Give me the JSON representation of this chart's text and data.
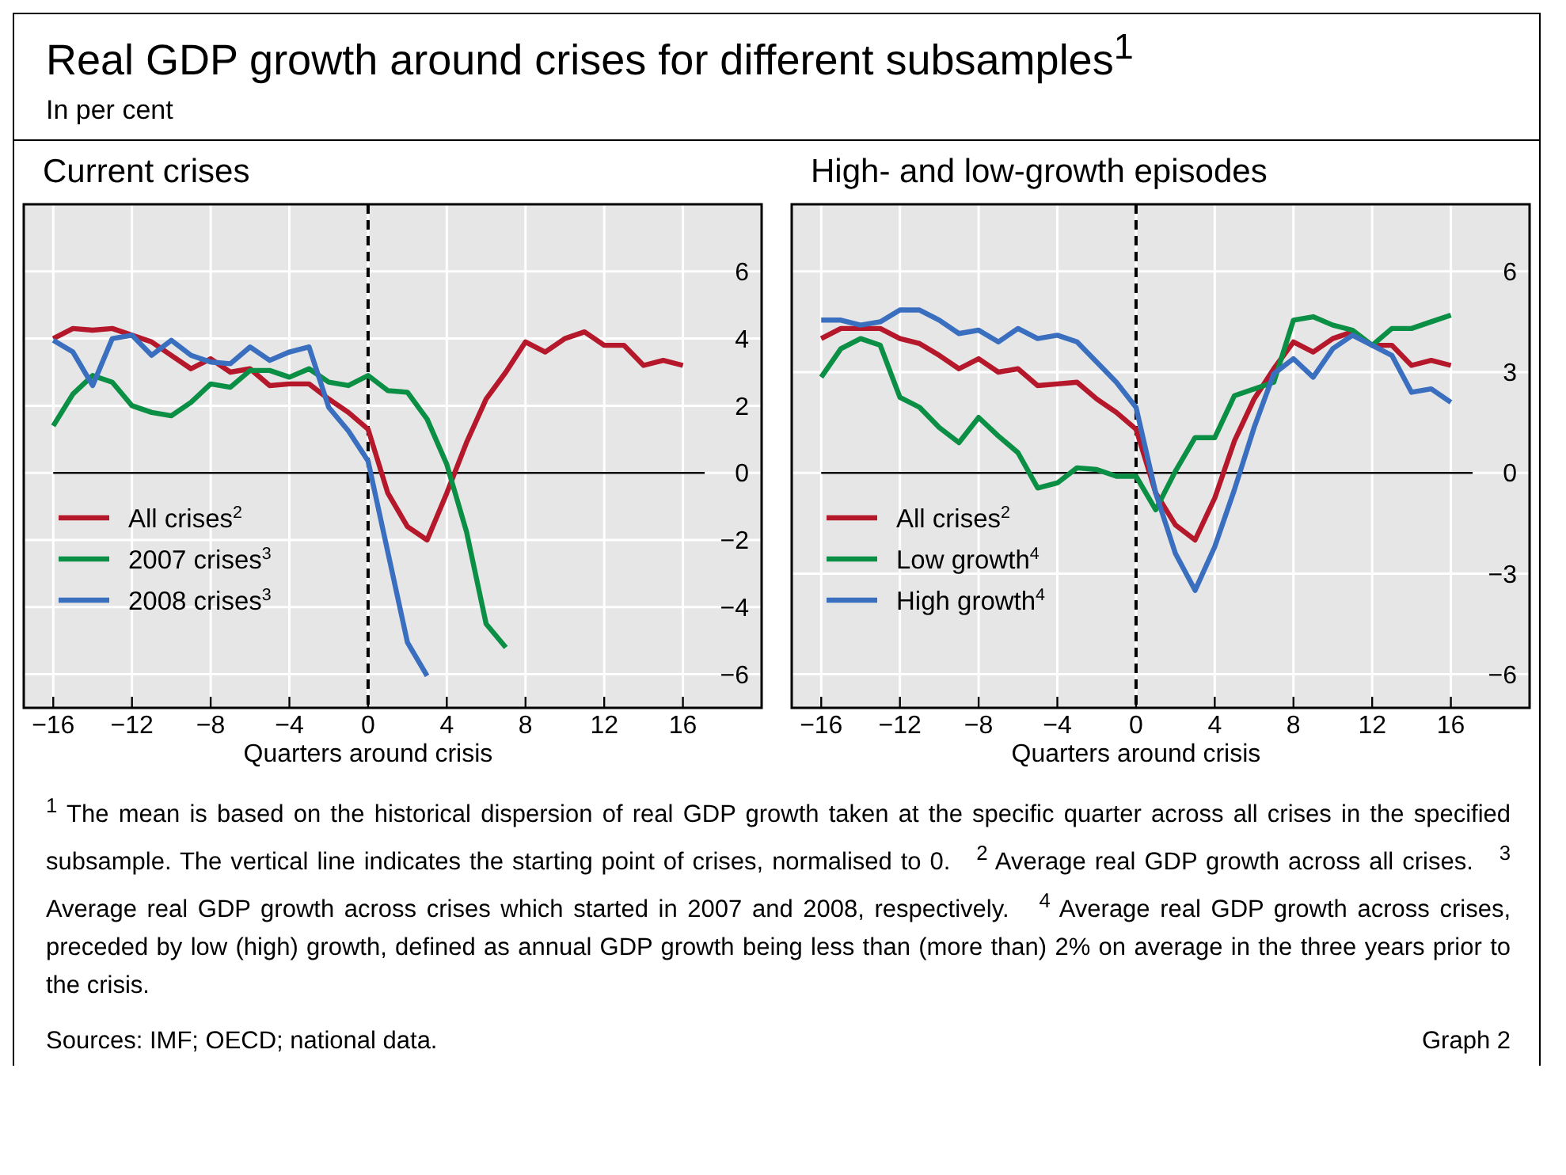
{
  "chart_data": [
    {
      "type": "line",
      "title": "Current crises",
      "xlabel": "Quarters around crisis",
      "annotations": [
        "Real GDP growth around crises for different subsamples$^{1}$",
        "In per cent",
        "$^{1}$ The mean is based on the historical dispersion of real GDP growth taken at the specific quarter across all crises in the specified subsample. The vertical line indicates the starting point of crises, normalised to 0.",
        "$^{2}$ Average real GDP growth across all crises.",
        "$^{3}$ Average real GDP growth across crises which started in 2007 and 2008, respectively.",
        "$^{4}$ Average real GDP growth across crises, preceded by low (high) growth, defined as annual GDP growth being less than (more than) 2% on average in the three years prior to the crisis.",
        "Sources: IMF; OECD; national data.",
        "Graph 2"
      ],
      "xlim": [
        -17.5,
        20
      ],
      "ylim": [
        -7,
        8
      ],
      "xticks": [
        {
          "value": -16,
          "label": "−16"
        },
        {
          "value": -12,
          "label": "−12"
        },
        {
          "value": -8,
          "label": "−8"
        },
        {
          "value": -4,
          "label": "−4"
        },
        0,
        4,
        8,
        12,
        16
      ],
      "yticks": [
        {
          "value": -6,
          "label": "−6"
        },
        {
          "value": -4,
          "label": "−4"
        },
        {
          "value": -2,
          "label": "−2"
        },
        0,
        2,
        4,
        6
      ],
      "grid": true,
      "legend": "bottom left",
      "line_style": "solid",
      "marker": "none",
      "ref_lines": [
        {
          "axis": "x",
          "value": 0,
          "label": null,
          "color": "#000000",
          "line_style": "dashed"
        },
        {
          "axis": "y",
          "value": 0,
          "label": null,
          "color": "#000000",
          "line_style": "solid"
        }
      ],
      "series": [
        {
          "name": "All crises$^{2}$",
          "color": "#b5182b",
          "x": [
            -16,
            -15,
            -14,
            -13,
            -12,
            -11,
            -10,
            -9,
            -8,
            -7,
            -6,
            -5,
            -4,
            -3,
            -2,
            -1,
            0,
            1,
            2,
            3,
            4,
            5,
            6,
            7,
            8,
            9,
            10,
            11,
            12,
            13,
            14,
            15,
            16
          ],
          "values": [
            4.0,
            4.3,
            4.25,
            4.3,
            4.1,
            3.9,
            3.5,
            3.1,
            3.4,
            3.0,
            3.1,
            2.6,
            2.65,
            2.65,
            2.2,
            1.8,
            1.3,
            -0.6,
            -1.6,
            -2.0,
            -0.6,
            0.9,
            2.2,
            3.0,
            3.9,
            3.6,
            4.0,
            4.2,
            3.8,
            3.8,
            3.2,
            3.35,
            3.2
          ]
        },
        {
          "name": "2007 crises$^{3}$",
          "color": "#0a8f45",
          "x": [
            -16,
            -15,
            -14,
            -13,
            -12,
            -11,
            -10,
            -9,
            -8,
            -7,
            -6,
            -5,
            -4,
            -3,
            -2,
            -1,
            0,
            1,
            2,
            3,
            4,
            5,
            6,
            7
          ],
          "values": [
            1.4,
            2.35,
            2.9,
            2.7,
            2.0,
            1.8,
            1.7,
            2.1,
            2.65,
            2.55,
            3.05,
            3.05,
            2.85,
            3.1,
            2.7,
            2.6,
            2.9,
            2.45,
            2.4,
            1.6,
            0.25,
            -1.75,
            -4.5,
            -5.2
          ]
        },
        {
          "name": "2008 crises$^{3}$",
          "color": "#3a6fbf",
          "x": [
            -16,
            -15,
            -14,
            -13,
            -12,
            -11,
            -10,
            -9,
            -8,
            -7,
            -6,
            -5,
            -4,
            -3,
            -2,
            -1,
            0,
            1,
            2,
            3
          ],
          "values": [
            3.95,
            3.6,
            2.6,
            4.0,
            4.1,
            3.5,
            3.95,
            3.5,
            3.3,
            3.25,
            3.75,
            3.35,
            3.6,
            3.75,
            1.95,
            1.25,
            0.35,
            -2.35,
            -5.05,
            -6.05
          ]
        }
      ]
    },
    {
      "type": "line",
      "title": "High- and low-growth episodes",
      "xlabel": "Quarters around crisis",
      "xlim": [
        -17.5,
        20
      ],
      "ylim": [
        -7,
        8
      ],
      "xticks": [
        {
          "value": -16,
          "label": "−16"
        },
        {
          "value": -12,
          "label": "−12"
        },
        {
          "value": -8,
          "label": "−8"
        },
        {
          "value": -4,
          "label": "−4"
        },
        0,
        4,
        8,
        12,
        16
      ],
      "yticks": [
        {
          "value": -6,
          "label": "−6"
        },
        {
          "value": -3,
          "label": "−3"
        },
        0,
        3,
        6
      ],
      "grid": true,
      "legend": "bottom left",
      "line_style": "solid",
      "marker": "none",
      "ref_lines": [
        {
          "axis": "x",
          "value": 0,
          "label": null,
          "color": "#000000",
          "line_style": "dashed"
        },
        {
          "axis": "y",
          "value": 0,
          "label": null,
          "color": "#000000",
          "line_style": "solid"
        }
      ],
      "series": [
        {
          "name": "All crises$^{2}$",
          "color": "#b5182b",
          "x": [
            -16,
            -15,
            -14,
            -13,
            -12,
            -11,
            -10,
            -9,
            -8,
            -7,
            -6,
            -5,
            -4,
            -3,
            -2,
            -1,
            0,
            1,
            2,
            3,
            4,
            5,
            6,
            7,
            8,
            9,
            10,
            11,
            12,
            13,
            14,
            15,
            16
          ],
          "values": [
            4.0,
            4.3,
            4.3,
            4.3,
            4.0,
            3.85,
            3.5,
            3.1,
            3.4,
            3.0,
            3.1,
            2.6,
            2.65,
            2.7,
            2.2,
            1.8,
            1.3,
            -0.6,
            -1.55,
            -2.0,
            -0.75,
            0.95,
            2.2,
            3.1,
            3.9,
            3.6,
            4.0,
            4.2,
            3.8,
            3.8,
            3.2,
            3.35,
            3.2
          ]
        },
        {
          "name": "Low growth$^{4}$",
          "color": "#0a8f45",
          "x": [
            -16,
            -15,
            -14,
            -13,
            -12,
            -11,
            -10,
            -9,
            -8,
            -7,
            -6,
            -5,
            -4,
            -3,
            -2,
            -1,
            0,
            1,
            2,
            3,
            4,
            5,
            6,
            7,
            8,
            9,
            10,
            11,
            12,
            13,
            14,
            15,
            16
          ],
          "values": [
            2.85,
            3.7,
            4.0,
            3.8,
            2.25,
            1.95,
            1.35,
            0.9,
            1.65,
            1.1,
            0.6,
            -0.45,
            -0.3,
            0.15,
            0.1,
            -0.1,
            -0.1,
            -1.1,
            0.05,
            1.05,
            1.05,
            2.3,
            2.5,
            2.7,
            4.55,
            4.65,
            4.4,
            4.25,
            3.8,
            4.3,
            4.3,
            4.5,
            4.7
          ]
        },
        {
          "name": "High growth$^{4}$",
          "color": "#3a6fbf",
          "x": [
            -16,
            -15,
            -14,
            -13,
            -12,
            -11,
            -10,
            -9,
            -8,
            -7,
            -6,
            -5,
            -4,
            -3,
            -2,
            -1,
            0,
            1,
            2,
            3,
            4,
            5,
            6,
            7,
            8,
            9,
            10,
            11,
            12,
            13,
            14,
            15,
            16
          ],
          "values": [
            4.55,
            4.55,
            4.4,
            4.5,
            4.85,
            4.85,
            4.55,
            4.15,
            4.25,
            3.9,
            4.3,
            4.0,
            4.1,
            3.9,
            3.3,
            2.7,
            1.95,
            -0.6,
            -2.4,
            -3.5,
            -2.2,
            -0.5,
            1.35,
            2.95,
            3.4,
            2.85,
            3.7,
            4.1,
            3.8,
            3.5,
            2.4,
            2.5,
            2.1
          ]
        }
      ]
    }
  ]
}
